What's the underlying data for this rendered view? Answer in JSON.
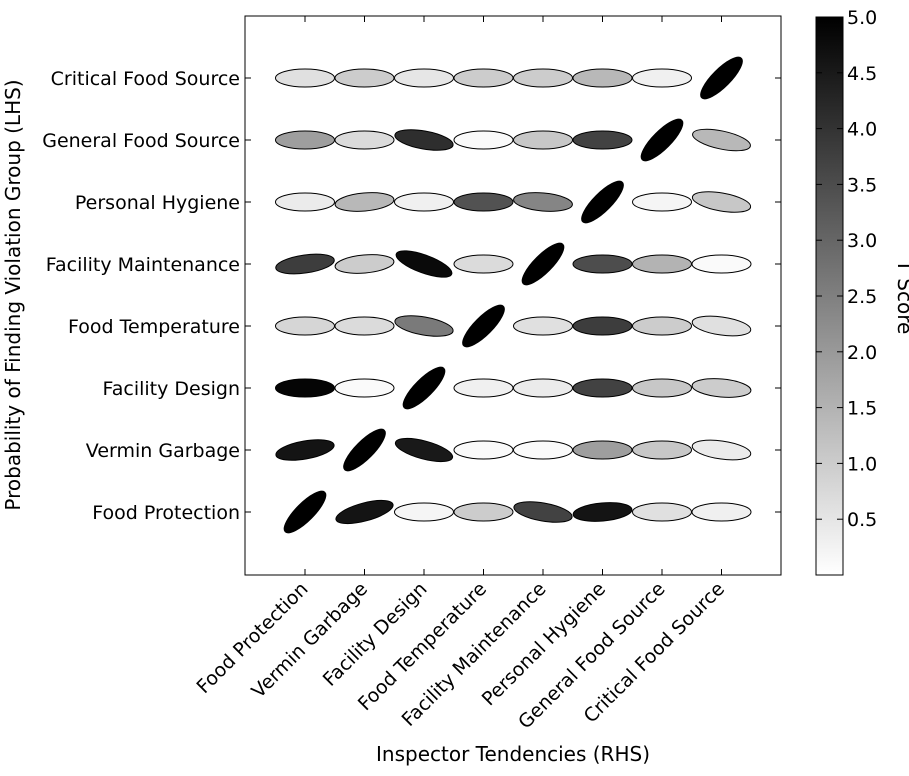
{
  "chart_data": {
    "type": "heatmap",
    "marker": "ellipse",
    "title": "",
    "xlabel": "Inspector Tendencies (RHS)",
    "ylabel": "Probability of Finding Violation Group (LHS)",
    "categories": [
      "Food Protection",
      "Vermin Garbage",
      "Facility Design",
      "Food Temperature",
      "Facility Maintenance",
      "Personal Hygiene",
      "General Food Source",
      "Critical Food Source"
    ],
    "y_categories": [
      "Food Protection",
      "Vermin Garbage",
      "Facility Design",
      "Food Temperature",
      "Facility Maintenance",
      "Personal Hygiene",
      "General Food Source",
      "Critical Food Source"
    ],
    "colorbar": {
      "label": "T Score",
      "range": [
        0,
        5.0
      ],
      "ticks": [
        "0.5",
        "1.0",
        "1.5",
        "2.0",
        "2.5",
        "3.0",
        "3.5",
        "4.0",
        "4.5",
        "5.0"
      ],
      "colormap": "Greys"
    },
    "grid": false,
    "t_scores": [
      [
        5.0,
        4.6,
        0.2,
        1.0,
        3.7,
        4.6,
        0.6,
        0.3
      ],
      [
        4.6,
        5.0,
        4.5,
        0.1,
        0.1,
        1.9,
        1.1,
        0.4
      ],
      [
        4.9,
        0.1,
        5.0,
        0.3,
        0.4,
        3.7,
        1.1,
        1.0
      ],
      [
        0.8,
        0.7,
        2.6,
        5.0,
        0.6,
        3.8,
        1.0,
        0.6
      ],
      [
        3.8,
        1.0,
        4.8,
        0.7,
        5.0,
        3.5,
        1.5,
        0.1
      ],
      [
        0.4,
        1.4,
        0.3,
        3.4,
        2.4,
        5.0,
        0.2,
        1.1
      ],
      [
        1.9,
        0.7,
        4.1,
        0.1,
        1.1,
        3.7,
        5.0,
        1.4
      ],
      [
        0.6,
        1.0,
        0.5,
        1.0,
        1.0,
        1.4,
        0.3,
        5.0
      ]
    ],
    "angles_deg": [
      [
        45,
        15,
        0,
        0,
        -10,
        5,
        0,
        0
      ],
      [
        10,
        45,
        -15,
        0,
        0,
        0,
        0,
        -8
      ],
      [
        0,
        0,
        45,
        0,
        0,
        0,
        0,
        -5
      ],
      [
        0,
        0,
        -10,
        45,
        0,
        0,
        0,
        -8
      ],
      [
        8,
        5,
        -20,
        0,
        45,
        0,
        0,
        0
      ],
      [
        0,
        5,
        0,
        0,
        -5,
        45,
        0,
        -10
      ],
      [
        0,
        0,
        -10,
        0,
        0,
        0,
        45,
        -12
      ],
      [
        0,
        0,
        0,
        0,
        0,
        0,
        0,
        45
      ]
    ]
  }
}
